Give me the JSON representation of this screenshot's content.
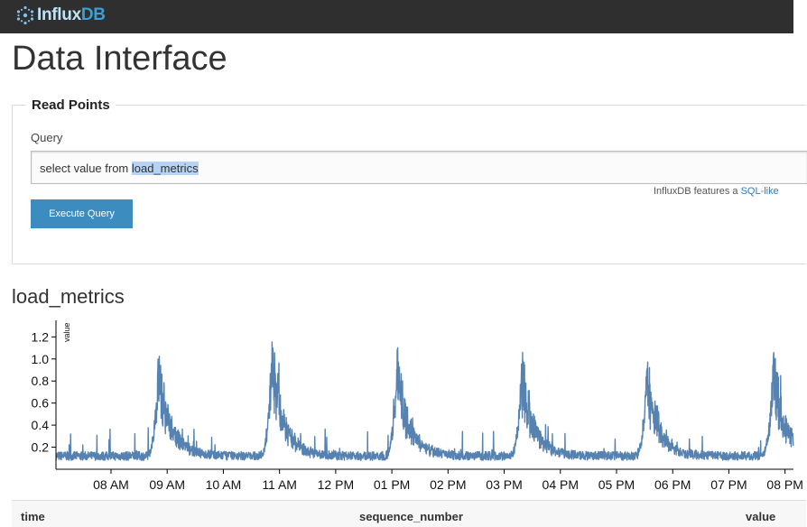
{
  "header": {
    "logo_part1": "Influx",
    "logo_part2": "DB",
    "logo_icon": "influxdb-logo-icon",
    "bg_color": "#2f2f2f"
  },
  "page": {
    "title": "Data Interface"
  },
  "read_points": {
    "legend": "Read Points",
    "query_label": "Query",
    "query_prefix": "select value from ",
    "query_selected": "load_metrics",
    "hint_text": "InfluxDB features a",
    "hint_link": "SQL-like",
    "execute_label": "Execute Query",
    "button_color": "#3d8cbf"
  },
  "series": {
    "title": "load_metrics"
  },
  "chart_data": {
    "type": "line",
    "ylabel": "value",
    "ylim": [
      0,
      1.35
    ],
    "yticks": [
      "0.2",
      "0.4",
      "0.6",
      "0.8",
      "1.0",
      "1.2"
    ],
    "ytick_values": [
      0.2,
      0.4,
      0.6,
      0.8,
      1.0,
      1.2
    ],
    "xticks": [
      "08 AM",
      "09 AM",
      "10 AM",
      "11 AM",
      "12 PM",
      "01 PM",
      "02 PM",
      "03 PM",
      "04 PM",
      "05 PM",
      "06 PM",
      "07 PM",
      "08 PM"
    ],
    "xtick_hours": [
      8,
      9,
      10,
      11,
      12,
      13,
      14,
      15,
      16,
      17,
      18,
      19,
      20
    ],
    "xlim_hours": [
      7.02,
      20.15
    ],
    "line_color": "#5582b0",
    "baseline": 0.12,
    "noise": 0.05,
    "peaks": [
      {
        "hour": 8.85,
        "value": 1.15
      },
      {
        "hour": 10.87,
        "value": 1.28
      },
      {
        "hour": 13.1,
        "value": 1.18
      },
      {
        "hour": 15.32,
        "value": 1.15
      },
      {
        "hour": 17.55,
        "value": 1.1
      },
      {
        "hour": 19.8,
        "value": 1.15
      }
    ]
  },
  "table": {
    "columns": [
      "time",
      "sequence_number",
      "value"
    ]
  }
}
